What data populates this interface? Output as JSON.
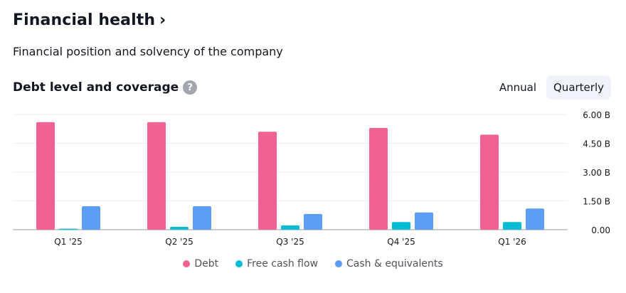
{
  "header": {
    "title": "Financial health",
    "chevron": "›",
    "subtitle": "Financial position and solvency of the company"
  },
  "card": {
    "title": "Debt level and coverage",
    "help_label": "?",
    "toggle": {
      "annual_label": "Annual",
      "quarterly_label": "Quarterly",
      "selected": "Quarterly"
    }
  },
  "colors": {
    "debt": "#f06292",
    "fcf": "#00bcd4",
    "cash": "#5b9cf5",
    "grid": "#eceef2",
    "baseline": "#9598a1"
  },
  "chart_data": {
    "type": "bar",
    "categories": [
      "Q1 '25",
      "Q2 '25",
      "Q3 '25",
      "Q4 '25",
      "Q1 '26"
    ],
    "series": [
      {
        "name": "Debt",
        "values": [
          5.6,
          5.6,
          5.1,
          5.3,
          4.95
        ],
        "color": "#f06292"
      },
      {
        "name": "Free cash flow",
        "values": [
          0.05,
          0.15,
          0.22,
          0.4,
          0.4
        ],
        "color": "#00bcd4"
      },
      {
        "name": "Cash & equivalents",
        "values": [
          1.22,
          1.22,
          0.82,
          0.9,
          1.1
        ],
        "color": "#5b9cf5"
      }
    ],
    "yticks": [
      0,
      1.5,
      3,
      4.5,
      6
    ],
    "ytick_labels": [
      "0.00",
      "1.50 B",
      "3.00 B",
      "4.50 B",
      "6.00 B"
    ],
    "ylim": [
      0,
      6
    ],
    "grid": true,
    "legend_position": "bottom"
  }
}
